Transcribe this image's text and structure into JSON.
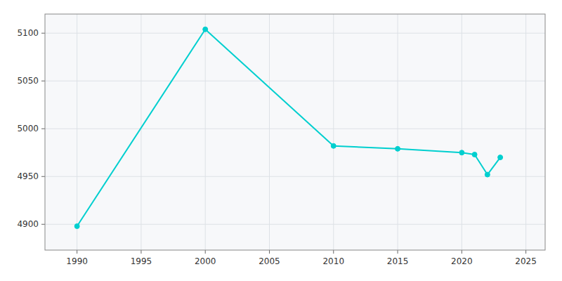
{
  "chart_data": {
    "type": "line",
    "x": [
      1990,
      2000,
      2010,
      2015,
      2020,
      2021,
      2022,
      2023
    ],
    "values": [
      4898,
      5104,
      4982,
      4979,
      4975,
      4973,
      4952,
      4970
    ],
    "color": "#00CFCF",
    "marker": "circle",
    "xlim": [
      1987.5,
      2026.5
    ],
    "ylim": [
      4873,
      5120
    ],
    "xticks": [
      1990,
      1995,
      2000,
      2005,
      2010,
      2015,
      2020,
      2025
    ],
    "yticks": [
      4900,
      4950,
      5000,
      5050,
      5100
    ],
    "grid": true
  }
}
